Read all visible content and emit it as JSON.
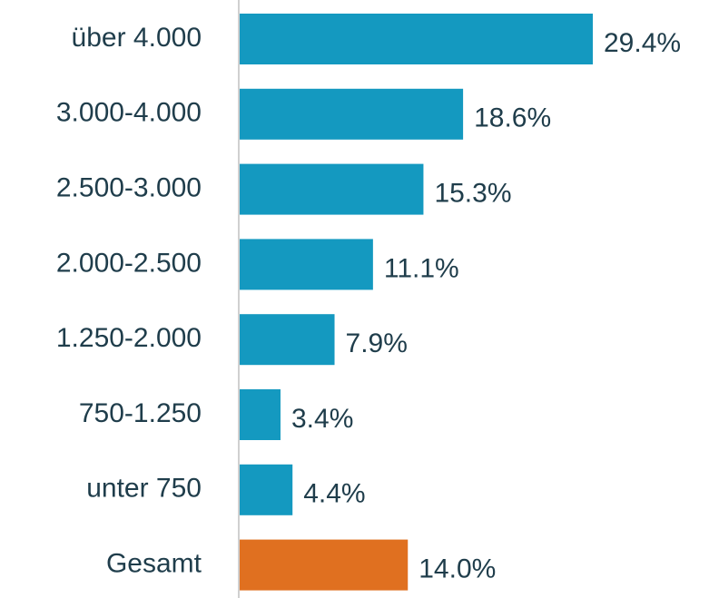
{
  "chart_data": {
    "type": "barh",
    "categories": [
      "über 4.000",
      "3.000-4.000",
      "2.500-3.000",
      "2.000-2.500",
      "1.250-2.000",
      "750-1.250",
      "unter 750",
      "Gesamt"
    ],
    "values": [
      29.4,
      18.6,
      15.3,
      11.1,
      7.9,
      3.4,
      4.4,
      14.0
    ],
    "value_labels": [
      "29.4%",
      "18.6%",
      "15.3%",
      "11.1%",
      "7.9%",
      "3.4%",
      "4.4%",
      "14.0%"
    ],
    "colors": [
      "#1499c0",
      "#1499c0",
      "#1499c0",
      "#1499c0",
      "#1499c0",
      "#1499c0",
      "#1499c0",
      "#e07020"
    ]
  }
}
